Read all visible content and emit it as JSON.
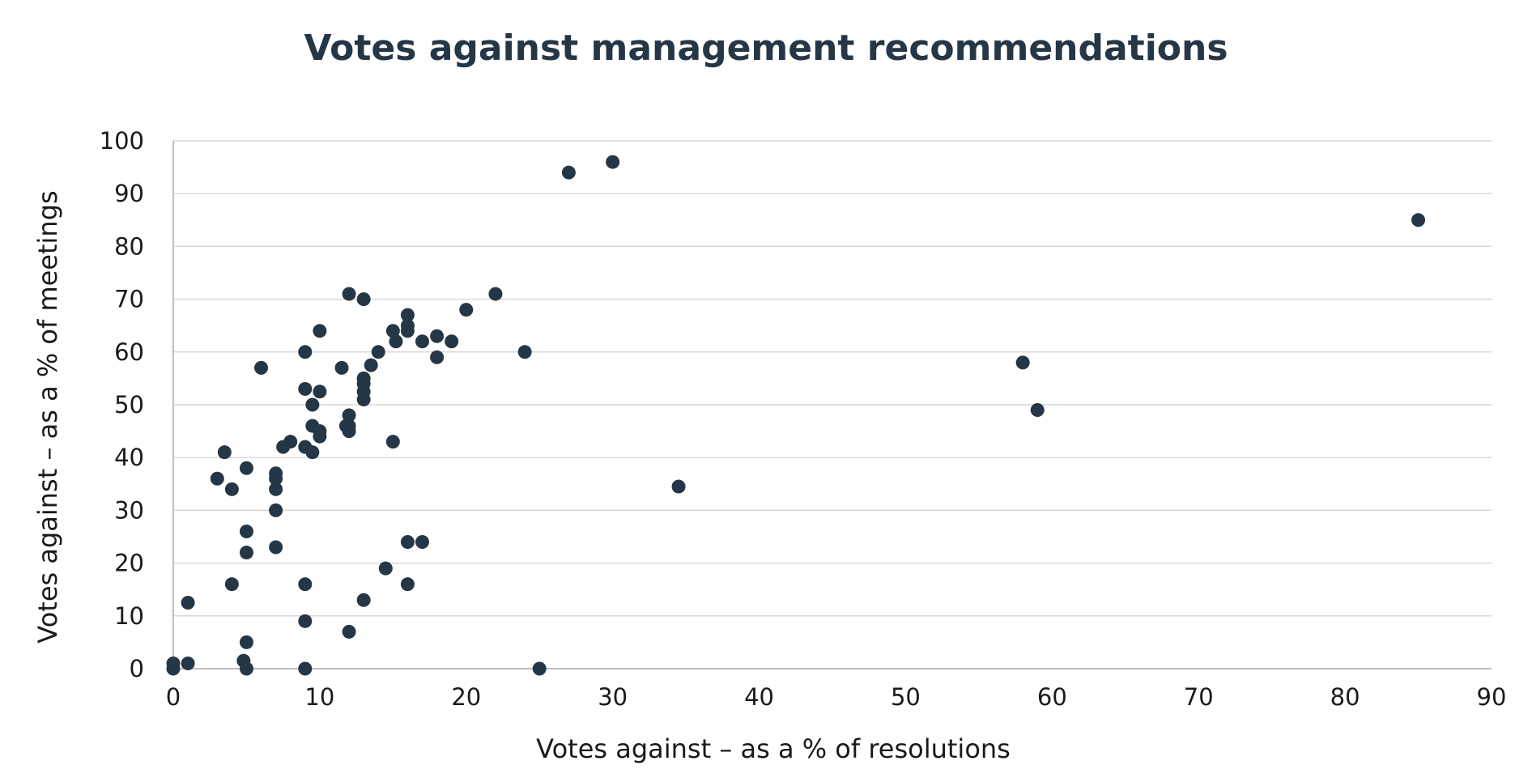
{
  "chart_data": {
    "type": "scatter",
    "title": "Votes against management recommendations",
    "xlabel": "Votes against – as a % of resolutions",
    "ylabel": "Votes against – as a % of meetings",
    "xlim": [
      0,
      90
    ],
    "ylim": [
      0,
      100
    ],
    "xticks": [
      0,
      10,
      20,
      30,
      40,
      50,
      60,
      70,
      80,
      90
    ],
    "yticks": [
      0,
      10,
      20,
      30,
      40,
      50,
      60,
      70,
      80,
      90,
      100
    ],
    "grid": "horizontal",
    "marker_color": "#253746",
    "points": [
      [
        0,
        0
      ],
      [
        0,
        1
      ],
      [
        1,
        1
      ],
      [
        1,
        12.5
      ],
      [
        3,
        36
      ],
      [
        3.5,
        41
      ],
      [
        4,
        34
      ],
      [
        4,
        16
      ],
      [
        4.8,
        1.5
      ],
      [
        5,
        0
      ],
      [
        5,
        5
      ],
      [
        5,
        22
      ],
      [
        5,
        26
      ],
      [
        5,
        38
      ],
      [
        6,
        57
      ],
      [
        7,
        23
      ],
      [
        7,
        30
      ],
      [
        7,
        34
      ],
      [
        7,
        36
      ],
      [
        7,
        37
      ],
      [
        7.5,
        42
      ],
      [
        8,
        43
      ],
      [
        9,
        0
      ],
      [
        9,
        9
      ],
      [
        9,
        16
      ],
      [
        9,
        42
      ],
      [
        9,
        53
      ],
      [
        9,
        60
      ],
      [
        9.5,
        41
      ],
      [
        9.5,
        46
      ],
      [
        9.5,
        50
      ],
      [
        10,
        44
      ],
      [
        10,
        45
      ],
      [
        10,
        52.5
      ],
      [
        10,
        64
      ],
      [
        11.5,
        57
      ],
      [
        11.8,
        46
      ],
      [
        12,
        7
      ],
      [
        12,
        45
      ],
      [
        12,
        46
      ],
      [
        12,
        48
      ],
      [
        12,
        71
      ],
      [
        13,
        13
      ],
      [
        13,
        51
      ],
      [
        13,
        52.5
      ],
      [
        13,
        54
      ],
      [
        13,
        55
      ],
      [
        13,
        70
      ],
      [
        13.5,
        57.5
      ],
      [
        14,
        60
      ],
      [
        14.5,
        19
      ],
      [
        15,
        43
      ],
      [
        15,
        64
      ],
      [
        15.2,
        62
      ],
      [
        16,
        16
      ],
      [
        16,
        24
      ],
      [
        16,
        64
      ],
      [
        16,
        65
      ],
      [
        16,
        67
      ],
      [
        17,
        24
      ],
      [
        17,
        62
      ],
      [
        18,
        59
      ],
      [
        18,
        63
      ],
      [
        19,
        62
      ],
      [
        20,
        68
      ],
      [
        22,
        71
      ],
      [
        24,
        60
      ],
      [
        25,
        0
      ],
      [
        27,
        94
      ],
      [
        30,
        96
      ],
      [
        34.5,
        34.5
      ],
      [
        58,
        58
      ],
      [
        59,
        49
      ],
      [
        85,
        85
      ]
    ]
  }
}
